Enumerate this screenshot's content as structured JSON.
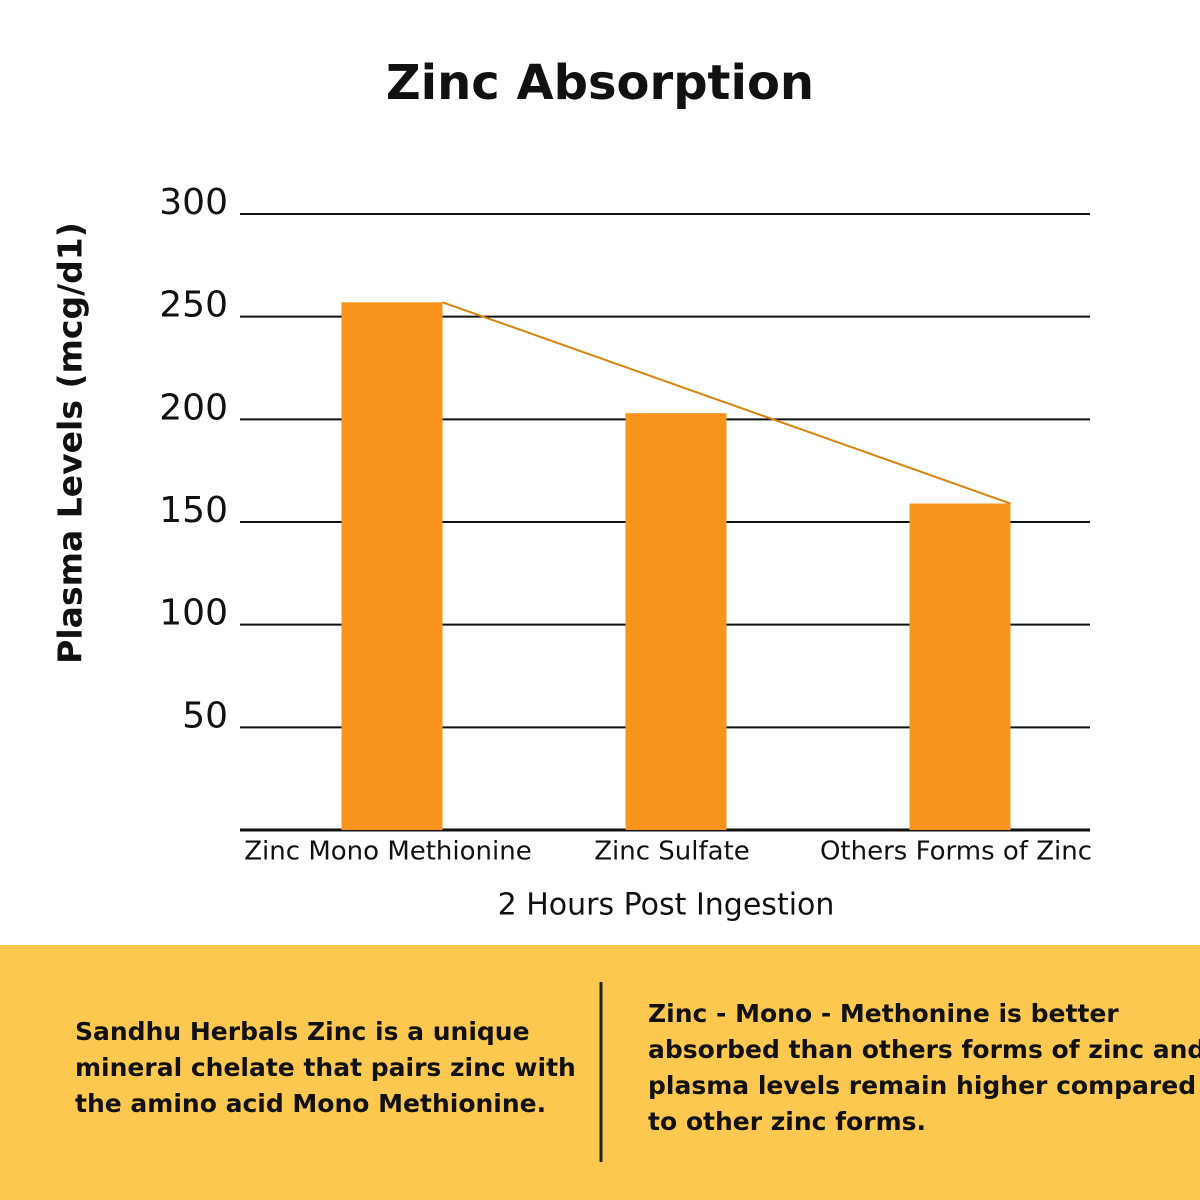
{
  "chart_data": {
    "type": "bar",
    "title": "Zinc Absorption",
    "y_label": "Plasma Levels (mcg/d1)",
    "x_label": "2 Hours Post Ingestion",
    "categories": [
      "Zinc Mono Methionine",
      "Zinc Sulfate",
      "Others Forms of Zinc"
    ],
    "values": [
      257,
      203,
      159
    ],
    "color": "#f7941d",
    "trend_color": "#d9830f",
    "ylim": [
      0,
      300
    ],
    "yticks": [
      50,
      100,
      150,
      200,
      250,
      300
    ],
    "grid": true
  },
  "footer": {
    "left": [
      "Sandhu Herbals Zinc is a unique",
      "mineral chelate that pairs zinc with",
      "the amino acid Mono Methionine."
    ],
    "right": [
      "Zinc - Mono - Methonine is better",
      "absorbed than others forms of zinc and",
      "plasma levels remain higher compared",
      "to other zinc forms."
    ]
  }
}
